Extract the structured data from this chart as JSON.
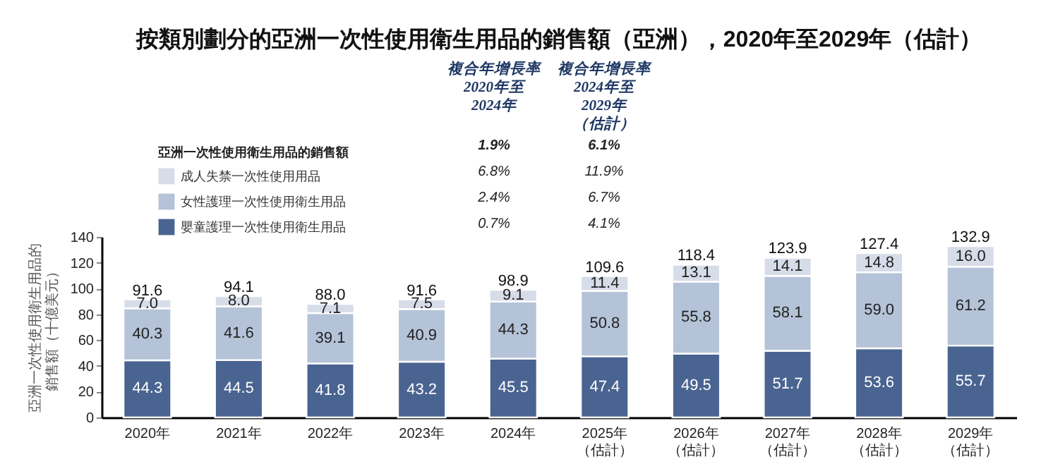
{
  "chart_data": {
    "type": "bar",
    "title": "按類別劃分的亞洲一次性使用衛生用品的銷售額（亞洲），2020年至2029年（估計）",
    "ylabel": "亞洲一次性使用衛生用品的銷售額（十億美元）",
    "legend_title": "亞洲一次性使用衛生用品的銷售額",
    "categories": [
      "2020年",
      "2021年",
      "2022年",
      "2023年",
      "2024年",
      "2025年（估計）",
      "2026年（估計）",
      "2027年（估計）",
      "2028年（估計）",
      "2029年（估計）"
    ],
    "series": [
      {
        "name": "嬰童護理一次性使用衛生用品",
        "color": "#4a6491",
        "values": [
          44.3,
          44.5,
          41.8,
          43.2,
          45.5,
          47.4,
          49.5,
          51.7,
          53.6,
          55.7
        ]
      },
      {
        "name": "女性護理一次性使用衛生用品",
        "color": "#b4c3d8",
        "values": [
          40.3,
          41.6,
          39.1,
          40.9,
          44.3,
          50.8,
          55.8,
          58.1,
          59.0,
          61.2
        ],
        "value_labels": [
          "40.3",
          "41.6",
          "39.1",
          "40.9",
          "44.3",
          "50.8",
          "55.8",
          "58.1",
          "59.0",
          "61.2"
        ]
      },
      {
        "name": "成人失禁一次性使用用品",
        "color": "#d6dce8",
        "values": [
          7.0,
          8.0,
          7.1,
          7.5,
          9.1,
          11.4,
          13.1,
          14.1,
          14.8,
          16.0
        ],
        "value_labels": [
          "7.0",
          "8.0",
          "7.1",
          "7.5",
          "9.1",
          "11.4",
          "13.1",
          "14.1",
          "14.8",
          "16.0"
        ]
      }
    ],
    "stacked": true,
    "data_labels": true,
    "totals": [
      "91.6",
      "94.1",
      "88.0",
      "91.6",
      "98.9",
      "109.6",
      "118.4",
      "123.9",
      "127.4",
      "132.9"
    ],
    "ylim": [
      0,
      140
    ],
    "yticks": [
      0,
      20,
      40,
      60,
      80,
      100,
      120,
      140
    ],
    "grid": false,
    "legend": "top left",
    "annotations": [
      "複合年增長率2020年至2024年",
      "複合年增長率2024年至2029年（估計）",
      "1.9%",
      "6.1%",
      "6.8%",
      "11.9%",
      "2.4%",
      "6.7%",
      "0.7%",
      "4.1%"
    ]
  }
}
